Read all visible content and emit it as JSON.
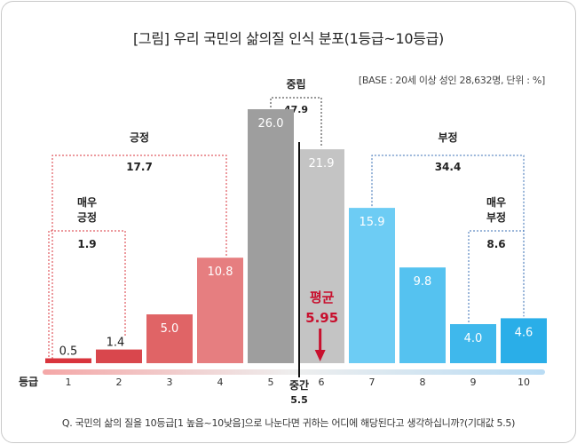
{
  "title": "[그림] 우리 국민의 삶의질 인식 분포(1등급~10등급)",
  "base_note": "[BASE : 20세 이상 성인 28,632명, 단위 : %]",
  "question": "Q. 국민의 삶의 질을 10등급[1 높음~10낮음]으로 나눈다면 귀하는 어디에 해당된다고 생각하십니까?(기대값 5.5)",
  "chart_data": {
    "type": "bar",
    "xlabel": "등급",
    "categories": [
      "1",
      "2",
      "3",
      "4",
      "5",
      "6",
      "7",
      "8",
      "9",
      "10"
    ],
    "values": [
      0.5,
      1.4,
      5.0,
      10.8,
      26.0,
      21.9,
      15.9,
      9.8,
      4.0,
      4.6
    ],
    "value_labels": [
      "0.5",
      "1.4",
      "5.0",
      "10.8",
      "26.0",
      "21.9",
      "15.9",
      "9.8",
      "4.0",
      "4.6"
    ],
    "bar_colors": [
      "#d9343d",
      "#d9474d",
      "#e06466",
      "#e67e80",
      "#9e9e9e",
      "#c4c4c4",
      "#6dccf4",
      "#55c2f0",
      "#3fb8ec",
      "#2aaee8"
    ],
    "ylim": [
      0,
      30
    ],
    "groups": [
      {
        "label": "긍정",
        "value": "17.7",
        "from": 1,
        "to": 4,
        "color": "#d9343d"
      },
      {
        "label": "매우 긍정",
        "lines": [
          "매우",
          "긍정"
        ],
        "value": "1.9",
        "from": 1,
        "to": 2,
        "color": "#d9343d"
      },
      {
        "label": "중립",
        "value": "47.9",
        "from": 5,
        "to": 6,
        "color": "#333333"
      },
      {
        "label": "부정",
        "value": "34.4",
        "from": 7,
        "to": 10,
        "color": "#3a6fb5"
      },
      {
        "label": "매우 부정",
        "lines": [
          "매우",
          "부정"
        ],
        "value": "8.6",
        "from": 9,
        "to": 10,
        "color": "#3a6fb5"
      }
    ],
    "midpoint": {
      "label": "중간",
      "value": "5.5",
      "at": 5.5
    },
    "mean": {
      "label": "평균",
      "value": "5.95",
      "at": 5.95,
      "color": "#c8102e"
    }
  }
}
